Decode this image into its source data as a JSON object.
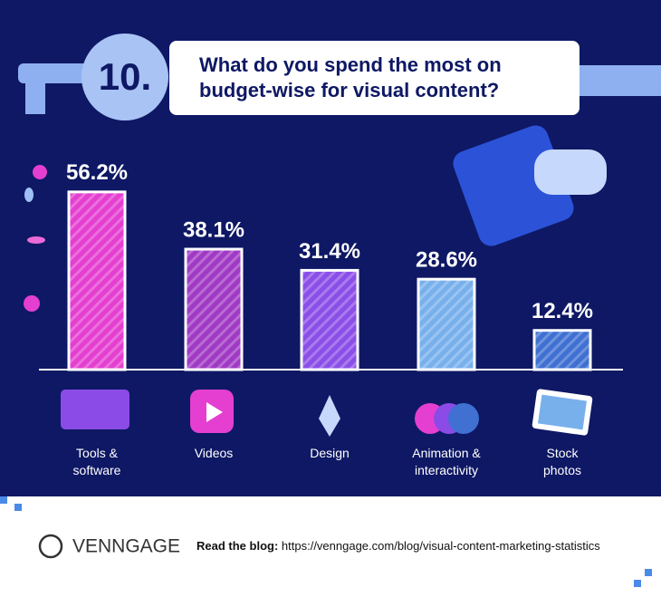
{
  "chart_data": {
    "type": "bar",
    "badge": "10.",
    "title": "What do you spend the most on budget-wise for visual content?",
    "categories": [
      "Tools & software",
      "Videos",
      "Design",
      "Animation & interactivity",
      "Stock photos"
    ],
    "values": [
      56.2,
      38.1,
      31.4,
      28.6,
      12.4
    ],
    "value_labels": [
      "56.2%",
      "38.1%",
      "31.4%",
      "28.6%",
      "12.4%"
    ],
    "colors": [
      "#e43fd0",
      "#a03ac4",
      "#8b4fe8",
      "#78b0ec",
      "#3f70d2"
    ]
  },
  "footer": {
    "brand": "VENNGAGE",
    "blog_label": "Read the blog:",
    "url": "https://venngage.com/blog/visual-content-marketing-statistics"
  }
}
